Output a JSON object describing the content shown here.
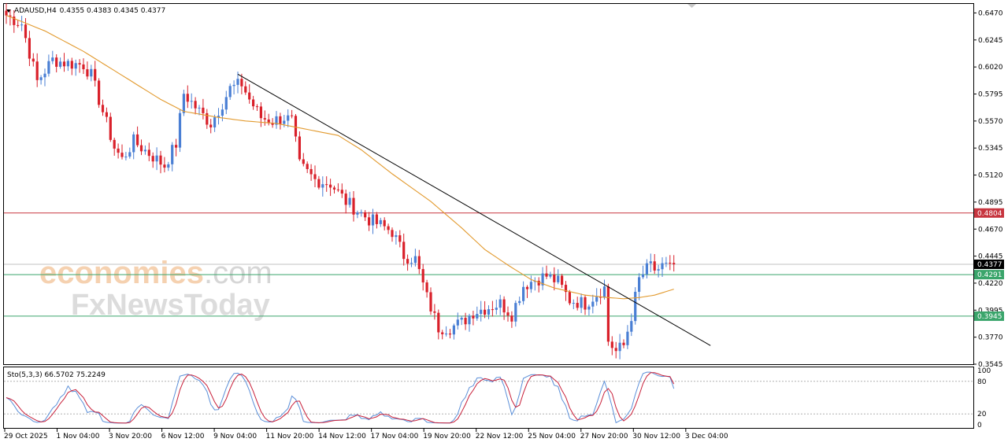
{
  "header": {
    "symbol": "ADAUSD,H4",
    "ohlc": "0.4355 0.4383 0.4345 0.4377"
  },
  "watermark": {
    "brand_a": "economies",
    "brand_b": ".com",
    "brand_c": "FxNewsToday"
  },
  "colors": {
    "bull": "#4a7fd4",
    "bear": "#d9202a",
    "ma": "#e29a2e",
    "trendline": "#000000",
    "resistance": "#c7353f",
    "support": "#3aa56b",
    "current": "#000000",
    "stoch_main": "#5b8fd8",
    "stoch_signal": "#c8203a"
  },
  "chart_data": {
    "type": "candlestick",
    "symbol": "ADAUSD",
    "timeframe": "H4",
    "ylim": [
      0.3545,
      0.6545
    ],
    "y_ticks": [
      "0.6470",
      "0.6245",
      "0.6020",
      "0.5795",
      "0.5570",
      "0.5345",
      "0.5120",
      "0.4895",
      "0.4670",
      "0.4445",
      "0.4220",
      "0.3995",
      "0.3770",
      "0.3545"
    ],
    "x_ticks": [
      "29 Oct 2025",
      "1 Nov 04:00",
      "3 Nov 20:00",
      "6 Nov 12:00",
      "9 Nov 04:00",
      "11 Nov 20:00",
      "14 Nov 12:00",
      "17 Nov 04:00",
      "19 Nov 20:00",
      "22 Nov 12:00",
      "25 Nov 04:00",
      "27 Nov 20:00",
      "30 Nov 12:00",
      "3 Dec 04:00"
    ],
    "levels": [
      {
        "label": "0.4804",
        "value": 0.4804,
        "kind": "resistance"
      },
      {
        "label": "0.4377",
        "value": 0.4377,
        "kind": "current"
      },
      {
        "label": "0.4291",
        "value": 0.4291,
        "kind": "support"
      },
      {
        "label": "0.3945",
        "value": 0.3945,
        "kind": "support"
      }
    ],
    "trendline": {
      "start": {
        "i": 60,
        "value": 0.596
      },
      "end": {
        "i": 178,
        "value": 0.372
      }
    },
    "waypoints": [
      [
        0,
        0.645
      ],
      [
        4,
        0.638
      ],
      [
        8,
        0.59
      ],
      [
        12,
        0.608
      ],
      [
        16,
        0.605
      ],
      [
        20,
        0.604
      ],
      [
        22,
        0.595
      ],
      [
        25,
        0.565
      ],
      [
        28,
        0.535
      ],
      [
        30,
        0.525
      ],
      [
        33,
        0.54
      ],
      [
        37,
        0.53
      ],
      [
        41,
        0.52
      ],
      [
        44,
        0.538
      ],
      [
        46,
        0.58
      ],
      [
        50,
        0.565
      ],
      [
        53,
        0.555
      ],
      [
        56,
        0.572
      ],
      [
        58,
        0.584
      ],
      [
        61,
        0.588
      ],
      [
        63,
        0.575
      ],
      [
        66,
        0.56
      ],
      [
        69,
        0.557
      ],
      [
        72,
        0.56
      ],
      [
        74,
        0.557
      ],
      [
        76,
        0.52
      ],
      [
        80,
        0.508
      ],
      [
        84,
        0.505
      ],
      [
        88,
        0.49
      ],
      [
        90,
        0.485
      ],
      [
        94,
        0.475
      ],
      [
        97,
        0.47
      ],
      [
        100,
        0.465
      ],
      [
        103,
        0.445
      ],
      [
        106,
        0.442
      ],
      [
        109,
        0.41
      ],
      [
        112,
        0.385
      ],
      [
        115,
        0.385
      ],
      [
        118,
        0.389
      ],
      [
        121,
        0.398
      ],
      [
        125,
        0.402
      ],
      [
        128,
        0.405
      ],
      [
        131,
        0.396
      ],
      [
        134,
        0.42
      ],
      [
        137,
        0.425
      ],
      [
        140,
        0.428
      ],
      [
        143,
        0.423
      ],
      [
        146,
        0.408
      ],
      [
        150,
        0.405
      ],
      [
        153,
        0.413
      ],
      [
        155,
        0.418
      ],
      [
        156,
        0.374
      ],
      [
        158,
        0.365
      ],
      [
        160,
        0.37
      ],
      [
        162,
        0.395
      ],
      [
        164,
        0.425
      ],
      [
        167,
        0.438
      ],
      [
        169,
        0.428
      ],
      [
        171,
        0.44
      ],
      [
        173,
        0.4377
      ]
    ],
    "ma_waypoints": [
      [
        0,
        0.645
      ],
      [
        10,
        0.632
      ],
      [
        20,
        0.615
      ],
      [
        30,
        0.595
      ],
      [
        40,
        0.575
      ],
      [
        46,
        0.565
      ],
      [
        55,
        0.56
      ],
      [
        62,
        0.557
      ],
      [
        70,
        0.555
      ],
      [
        78,
        0.55
      ],
      [
        86,
        0.545
      ],
      [
        92,
        0.533
      ],
      [
        100,
        0.513
      ],
      [
        110,
        0.49
      ],
      [
        118,
        0.468
      ],
      [
        124,
        0.45
      ],
      [
        130,
        0.437
      ],
      [
        136,
        0.425
      ],
      [
        142,
        0.418
      ],
      [
        150,
        0.412
      ],
      [
        156,
        0.41
      ],
      [
        160,
        0.409
      ],
      [
        164,
        0.41
      ],
      [
        168,
        0.412
      ],
      [
        173,
        0.417
      ]
    ],
    "stochastic": {
      "label": "Sto(5,3,3) 66.5702 75.2249",
      "ylim": [
        0,
        100
      ],
      "levels": [
        {
          "label": "80",
          "value": 80
        },
        {
          "label": "20",
          "value": 20
        }
      ],
      "scale_labels": [
        "100",
        "80",
        "20",
        "0"
      ],
      "main_last": 66.5702,
      "signal_last": 75.2249
    }
  }
}
